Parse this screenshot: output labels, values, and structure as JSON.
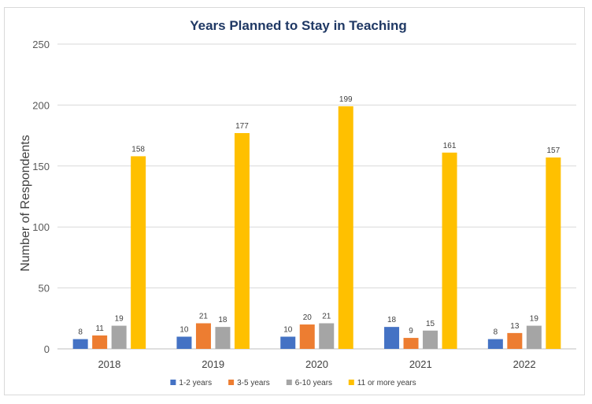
{
  "chart_data": {
    "type": "bar",
    "title": "Years Planned to Stay in Teaching",
    "xlabel": "",
    "ylabel": "Number of Respondents",
    "ylim": [
      0,
      250
    ],
    "yticks": [
      0,
      50,
      100,
      150,
      200,
      250
    ],
    "categories": [
      "2018",
      "2019",
      "2020",
      "2021",
      "2022"
    ],
    "series": [
      {
        "name": "1-2 years",
        "color": "#4472c4",
        "values": [
          8,
          10,
          10,
          18,
          8
        ]
      },
      {
        "name": "3-5 years",
        "color": "#ed7d31",
        "values": [
          11,
          21,
          20,
          9,
          13
        ]
      },
      {
        "name": "6-10 years",
        "color": "#a5a5a5",
        "values": [
          19,
          18,
          21,
          15,
          19
        ]
      },
      {
        "name": "11 or more years",
        "color": "#ffc000",
        "values": [
          158,
          177,
          199,
          161,
          157
        ]
      }
    ],
    "grid": true,
    "legend_position": "bottom",
    "data_labels": true
  }
}
